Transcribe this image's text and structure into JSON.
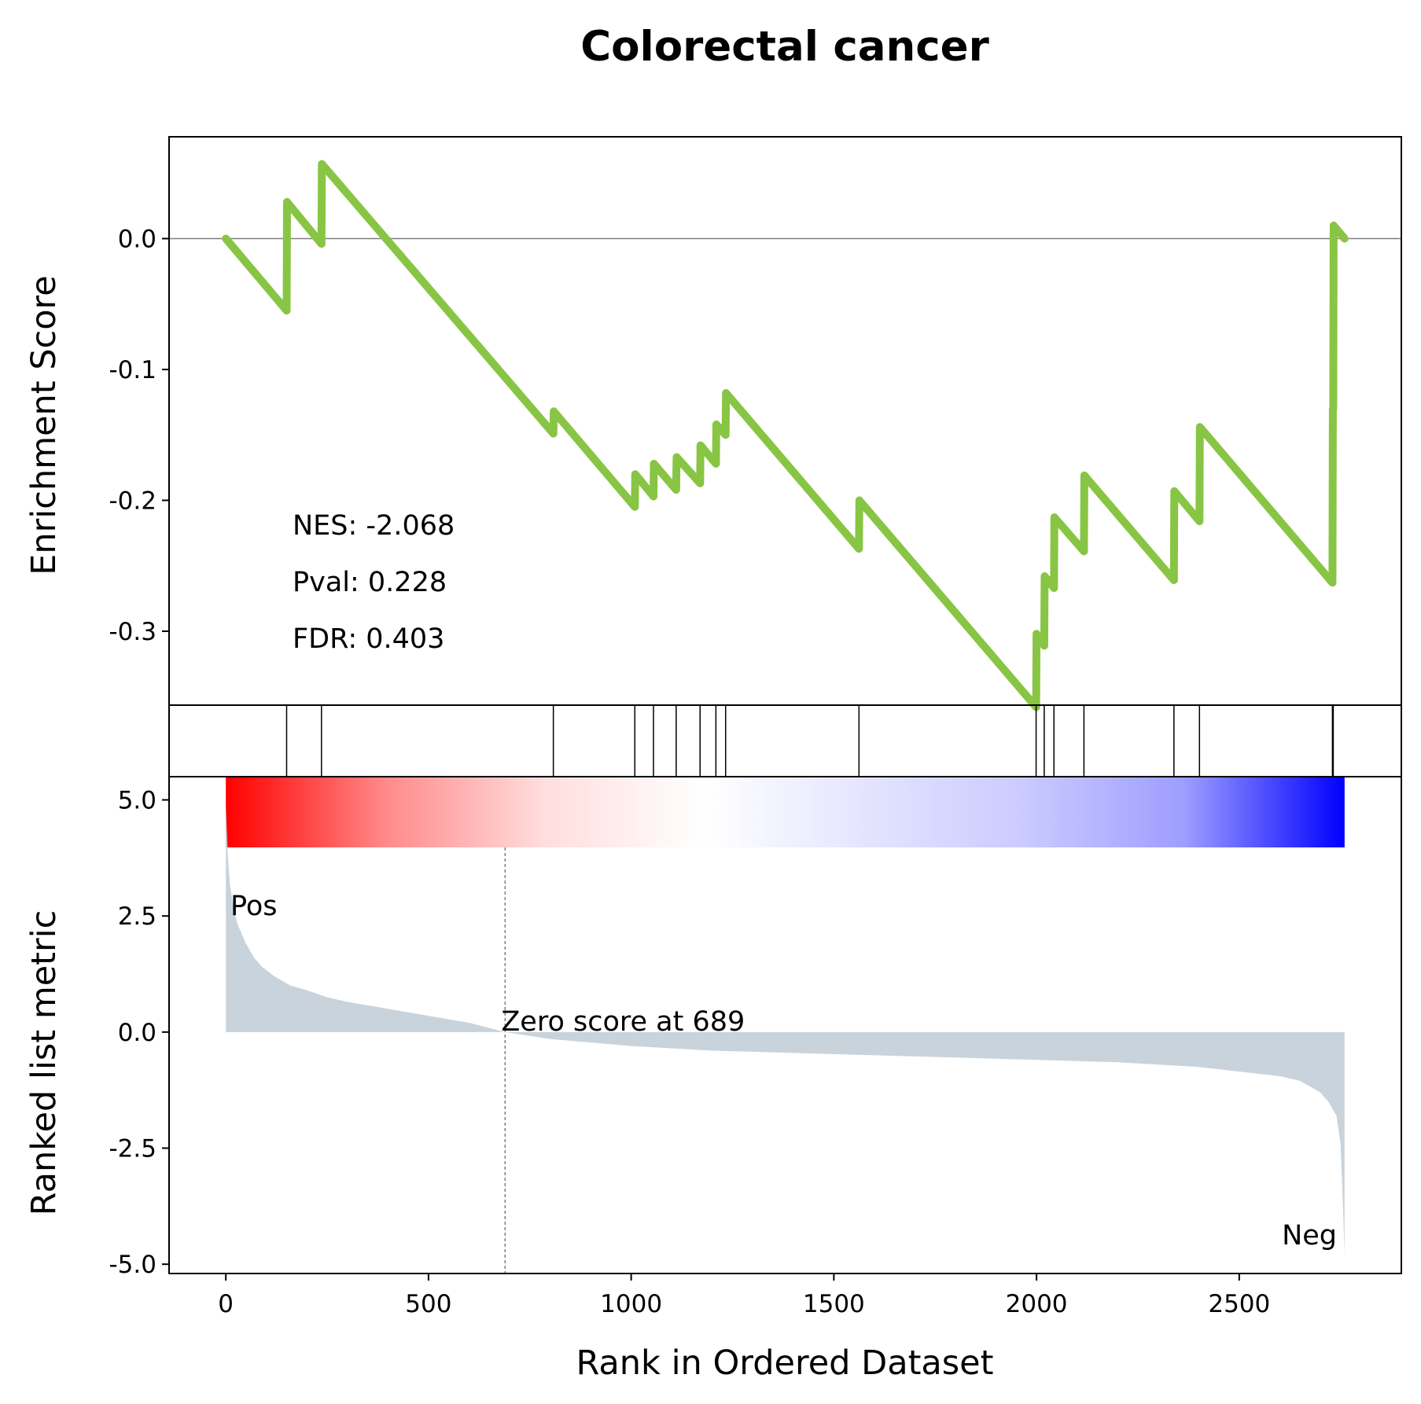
{
  "chart_data": {
    "type": "line",
    "title": "Colorectal cancer",
    "xlabel": "Rank in Ordered Dataset",
    "xlim": [
      -140,
      2900
    ],
    "xticks": [
      0,
      500,
      1000,
      1500,
      2000,
      2500
    ],
    "xtick_labels": [
      "0",
      "500",
      "1000",
      "1500",
      "2000",
      "2500"
    ],
    "es_panel": {
      "ylabel": "Enrichment Score",
      "ylim": [
        -0.3565,
        0.0778
      ],
      "yticks": [
        0.0,
        -0.1,
        -0.2,
        -0.3
      ],
      "ytick_labels": [
        "0.0",
        "-0.1",
        "-0.2",
        "-0.3"
      ],
      "zero_line": true,
      "color": "#88c544",
      "series": [
        {
          "x": [
            0,
            150,
            151,
            236,
            237,
            808,
            809,
            1009,
            1010,
            1055,
            1056,
            1111,
            1112,
            1170,
            1171,
            1209,
            1210,
            1233,
            1234,
            1562,
            1563,
            1999,
            2000,
            2019,
            2020,
            2043,
            2044,
            2117,
            2118,
            2339,
            2340,
            2402,
            2403,
            2730,
            2731,
            2732,
            2733,
            2760
          ],
          "y": [
            0.0,
            -0.055,
            0.028,
            -0.004,
            0.057,
            -0.149,
            -0.132,
            -0.205,
            -0.18,
            -0.197,
            -0.172,
            -0.192,
            -0.167,
            -0.187,
            -0.158,
            -0.172,
            -0.142,
            -0.15,
            -0.118,
            -0.237,
            -0.2,
            -0.358,
            -0.302,
            -0.311,
            -0.258,
            -0.267,
            -0.213,
            -0.239,
            -0.181,
            -0.261,
            -0.193,
            -0.216,
            -0.144,
            -0.263,
            -0.13,
            -0.13,
            0.01,
            0.0
          ]
        }
      ],
      "annotations": {
        "nes": "NES: -2.068",
        "pval": "Pval: 0.228",
        "fdr": "FDR: 0.403"
      }
    },
    "hits_panel": {
      "hit_ranks": [
        150,
        236,
        808,
        1009,
        1055,
        1111,
        1170,
        1209,
        1233,
        1562,
        1999,
        2019,
        2043,
        2117,
        2339,
        2402,
        2730,
        2732
      ]
    },
    "ranked_panel": {
      "ylabel": "Ranked list metric",
      "ylim": [
        -5.2,
        5.5
      ],
      "yticks": [
        5.0,
        2.5,
        0.0,
        -2.5,
        -5.0
      ],
      "ytick_labels": [
        "5.0",
        "2.5",
        "0.0",
        "-2.5",
        "-5.0"
      ],
      "fill_color": "#c9d3dc",
      "zero_rank": 689,
      "zero_label": "Zero score at 689",
      "pos_label": "Pos",
      "neg_label": "Neg",
      "pos_color": "#ff0000",
      "neg_color": "#0000ff",
      "gradient": [
        "#ff0000",
        "#ff8a8a",
        "#ffdede",
        "#ffffff",
        "#e4e4ff",
        "#cacaff",
        "#9d9dff",
        "#0000ff"
      ],
      "curve": {
        "x": [
          0,
          5,
          10,
          20,
          30,
          40,
          50,
          70,
          90,
          120,
          160,
          200,
          250,
          300,
          400,
          500,
          600,
          689,
          800,
          1000,
          1200,
          1400,
          1600,
          1800,
          2000,
          2200,
          2400,
          2500,
          2600,
          2650,
          2700,
          2720,
          2740,
          2750,
          2755,
          2760
        ],
        "y": [
          4.9,
          3.8,
          3.2,
          2.6,
          2.3,
          2.1,
          1.9,
          1.6,
          1.4,
          1.2,
          1.0,
          0.9,
          0.75,
          0.65,
          0.5,
          0.35,
          0.2,
          0.0,
          -0.15,
          -0.3,
          -0.4,
          -0.45,
          -0.5,
          -0.55,
          -0.6,
          -0.65,
          -0.75,
          -0.85,
          -0.95,
          -1.05,
          -1.3,
          -1.5,
          -1.8,
          -2.4,
          -3.5,
          -4.8
        ]
      }
    }
  }
}
